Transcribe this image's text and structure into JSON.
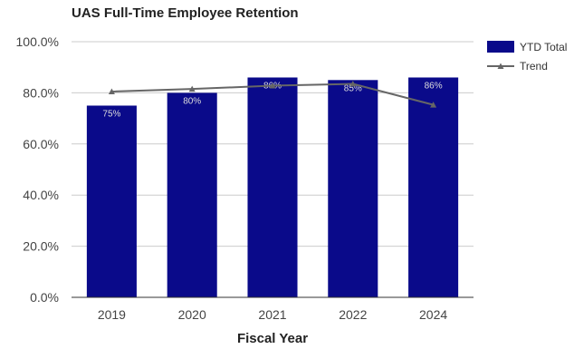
{
  "chart_data": {
    "type": "bar",
    "title": "UAS Full-Time Employee Retention",
    "xlabel": "Fiscal Year",
    "ylabel": "",
    "ylim": [
      0,
      100
    ],
    "yticks": [
      "0.0%",
      "20.0%",
      "40.0%",
      "60.0%",
      "80.0%",
      "100.0%"
    ],
    "categories": [
      "2019",
      "2020",
      "2021",
      "2022",
      "2024"
    ],
    "series": [
      {
        "name": "YTD Total",
        "type": "bar",
        "color": "#0a0a8a",
        "values": [
          75,
          80,
          86,
          85,
          86
        ],
        "labels": [
          "75%",
          "80%",
          "86%",
          "85%",
          "86%"
        ]
      },
      {
        "name": "Trend",
        "type": "line",
        "color": "#666666",
        "values": [
          80.5,
          81.5,
          82.8,
          83.5,
          75.3
        ]
      }
    ],
    "legend_position": "top-right",
    "grid": true
  }
}
